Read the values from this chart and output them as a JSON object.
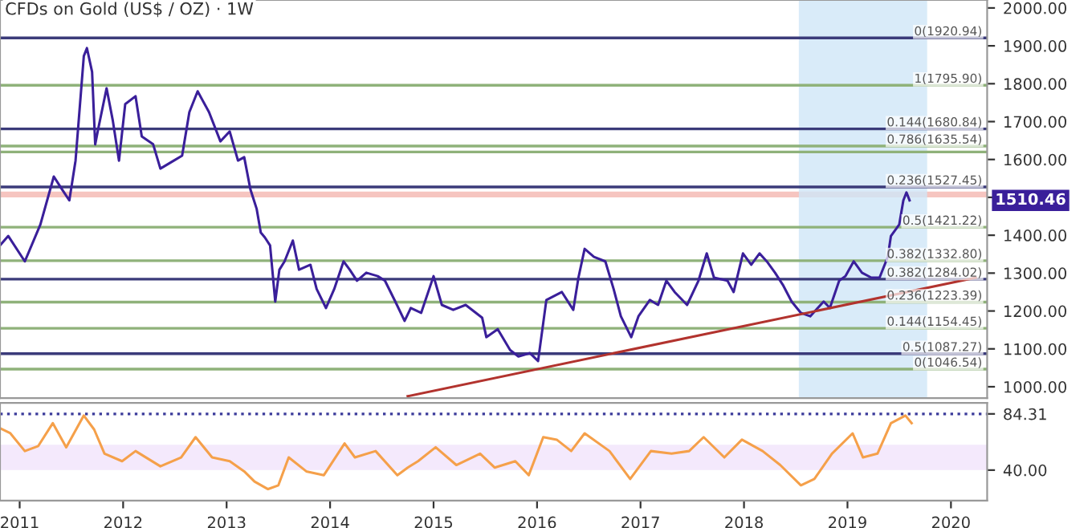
{
  "chart_data": [
    {
      "type": "line",
      "title": "CFDs on Gold (US$ / OZ) · 1W",
      "tick_labels": "y",
      "xlim": [
        2010.81,
        2020.35
      ],
      "ylim": [
        970,
        2021
      ],
      "yticks": [
        {
          "value": 1000,
          "label": "1000.00"
        },
        {
          "value": 1100,
          "label": "1100.00"
        },
        {
          "value": 1200,
          "label": "1200.00"
        },
        {
          "value": 1300,
          "label": "1300.00"
        },
        {
          "value": 1400,
          "label": "1400.00"
        },
        {
          "value": 1500,
          "label": null
        },
        {
          "value": 1600,
          "label": "1600.00"
        },
        {
          "value": 1700,
          "label": "1700.00"
        },
        {
          "value": 1800,
          "label": "1800.00"
        },
        {
          "value": 1900,
          "label": "1900.00"
        },
        {
          "value": 2000,
          "label": "2000.00"
        }
      ],
      "series": [
        {
          "color": "#3a1f9a",
          "x": [
            2010.81,
            2010.89,
            2011.05,
            2011.2,
            2011.33,
            2011.4,
            2011.48,
            2011.54,
            2011.62,
            2011.65,
            2011.7,
            2011.73,
            2011.76,
            2011.84,
            2011.9,
            2011.96,
            2012.02,
            2012.12,
            2012.18,
            2012.29,
            2012.36,
            2012.49,
            2012.57,
            2012.64,
            2012.72,
            2012.83,
            2012.94,
            2013.03,
            2013.11,
            2013.17,
            2013.23,
            2013.29,
            2013.33,
            2013.37,
            2013.42,
            2013.47,
            2013.51,
            2013.56,
            2013.64,
            2013.7,
            2013.81,
            2013.87,
            2013.96,
            2014.04,
            2014.13,
            2014.19,
            2014.26,
            2014.35,
            2014.46,
            2014.53,
            2014.63,
            2014.72,
            2014.78,
            2014.88,
            2015.0,
            2015.08,
            2015.19,
            2015.31,
            2015.47,
            2015.51,
            2015.62,
            2015.74,
            2015.82,
            2015.93,
            2016.01,
            2016.09,
            2016.24,
            2016.35,
            2016.4,
            2016.46,
            2016.55,
            2016.66,
            2016.74,
            2016.81,
            2016.91,
            2016.98,
            2017.09,
            2017.17,
            2017.25,
            2017.33,
            2017.45,
            2017.56,
            2017.64,
            2017.71,
            2017.84,
            2017.9,
            2017.99,
            2018.07,
            2018.15,
            2018.22,
            2018.3,
            2018.38,
            2018.46,
            2018.55,
            2018.64,
            2018.77,
            2018.83,
            2018.92,
            2018.98,
            2019.06,
            2019.14,
            2019.23,
            2019.31,
            2019.39,
            2019.42,
            2019.5,
            2019.54,
            2019.57,
            2019.6
          ],
          "values": [
            1373,
            1398,
            1331,
            1428,
            1555,
            1525,
            1492,
            1597,
            1873,
            1894,
            1831,
            1640,
            1682,
            1788,
            1703,
            1597,
            1746,
            1767,
            1661,
            1640,
            1576,
            1597,
            1610,
            1725,
            1780,
            1725,
            1648,
            1674,
            1597,
            1606,
            1521,
            1470,
            1407,
            1394,
            1373,
            1225,
            1309,
            1331,
            1386,
            1309,
            1322,
            1258,
            1208,
            1258,
            1331,
            1309,
            1280,
            1301,
            1292,
            1280,
            1225,
            1174,
            1208,
            1195,
            1292,
            1216,
            1203,
            1216,
            1182,
            1131,
            1152,
            1097,
            1080,
            1089,
            1068,
            1229,
            1250,
            1203,
            1288,
            1364,
            1343,
            1331,
            1258,
            1186,
            1131,
            1186,
            1229,
            1216,
            1280,
            1250,
            1216,
            1280,
            1352,
            1288,
            1280,
            1250,
            1352,
            1322,
            1352,
            1331,
            1301,
            1267,
            1225,
            1195,
            1186,
            1225,
            1208,
            1280,
            1292,
            1331,
            1301,
            1288,
            1288,
            1343,
            1398,
            1428,
            1492,
            1513,
            1492
          ]
        },
        {
          "color": "#b2332e",
          "x": [
            2014.75,
            2020.24
          ],
          "values": [
            975,
            1288
          ]
        }
      ],
      "ref_lines": [
        {
          "axis": "y",
          "value": 1920.94,
          "label": "0(1920.94)",
          "color": "#3b3b7a"
        },
        {
          "axis": "y",
          "value": 1795.9,
          "label": "1(1795.90)",
          "color": "#8fb27a"
        },
        {
          "axis": "y",
          "value": 1680.84,
          "label": "0.144(1680.84)",
          "color": "#3b3b7a"
        },
        {
          "axis": "y",
          "value": 1635.54,
          "label": "0.786(1635.54)",
          "color": "#8fb27a"
        },
        {
          "axis": "y",
          "value": 1620,
          "color": "#8fb27a"
        },
        {
          "axis": "y",
          "value": 1527.45,
          "label": "0.236(1527.45)",
          "color": "#3b3b7a"
        },
        {
          "axis": "y",
          "value": 1421.22,
          "label": "0.5(1421.22)",
          "color": "#8fb27a"
        },
        {
          "axis": "y",
          "value": 1332.8,
          "label": "0.382(1332.80)",
          "color": "#8fb27a"
        },
        {
          "axis": "y",
          "value": 1284.02,
          "label": "0.382(1284.02)",
          "color": "#3b3b7a"
        },
        {
          "axis": "y",
          "value": 1223.39,
          "label": "0.236(1223.39)",
          "color": "#8fb27a"
        },
        {
          "axis": "y",
          "value": 1154.45,
          "label": "0.144(1154.45)",
          "color": "#8fb27a"
        },
        {
          "axis": "y",
          "value": 1087.27,
          "label": "0.5(1087.27)",
          "color": "#3b3b7a"
        },
        {
          "axis": "y",
          "value": 1046.54,
          "label": "0(1046.54)",
          "color": "#8fb27a"
        }
      ],
      "bands": [
        {
          "axis": "y",
          "from": 1500,
          "to": 1515,
          "color": "#f4b6b0"
        },
        {
          "axis": "x",
          "from": 2018.53,
          "to": 2019.77,
          "color": "#cfe6f8"
        }
      ],
      "annotations": [
        "1510.46"
      ]
    },
    {
      "type": "line",
      "xlim": [
        2010.81,
        2020.35
      ],
      "ylim": [
        16,
        93
      ],
      "xticks": [
        2011,
        2012,
        2013,
        2014,
        2015,
        2016,
        2017,
        2018,
        2019,
        2020
      ],
      "yticks": [
        {
          "value": 40,
          "label": "40.00"
        },
        {
          "value": 84.31,
          "label": "84.31"
        }
      ],
      "series": [
        {
          "color": "#f5a04a",
          "x": [
            2010.81,
            2010.91,
            2011.05,
            2011.18,
            2011.32,
            2011.45,
            2011.62,
            2011.72,
            2011.82,
            2011.99,
            2012.12,
            2012.36,
            2012.56,
            2012.7,
            2012.86,
            2013.03,
            2013.17,
            2013.27,
            2013.4,
            2013.5,
            2013.6,
            2013.77,
            2013.94,
            2014.14,
            2014.24,
            2014.44,
            2014.65,
            2014.75,
            2014.85,
            2015.02,
            2015.22,
            2015.45,
            2015.59,
            2015.79,
            2015.92,
            2016.06,
            2016.19,
            2016.33,
            2016.46,
            2016.7,
            2016.9,
            2017.1,
            2017.3,
            2017.47,
            2017.61,
            2017.81,
            2017.98,
            2018.18,
            2018.35,
            2018.55,
            2018.68,
            2018.85,
            2019.05,
            2019.15,
            2019.29,
            2019.42,
            2019.56,
            2019.62
          ],
          "values": [
            73,
            69,
            55,
            59,
            77,
            58,
            83,
            72,
            53,
            47,
            55,
            43,
            50,
            66,
            50,
            47,
            39,
            31,
            25,
            28,
            50,
            39,
            36,
            61,
            50,
            55,
            36,
            42,
            47,
            58,
            44,
            53,
            42,
            47,
            36,
            66,
            64,
            55,
            69,
            55,
            33,
            55,
            53,
            55,
            66,
            50,
            64,
            55,
            44,
            28,
            33,
            53,
            69,
            50,
            53,
            77,
            83,
            77
          ]
        }
      ],
      "ref_lines": [
        {
          "axis": "y",
          "value": 84.31,
          "color": "#3b3b9a",
          "line_style": "dotted"
        }
      ],
      "bands": [
        {
          "axis": "y",
          "from": 40,
          "to": 60,
          "color": "#f1e4fb"
        }
      ]
    }
  ]
}
